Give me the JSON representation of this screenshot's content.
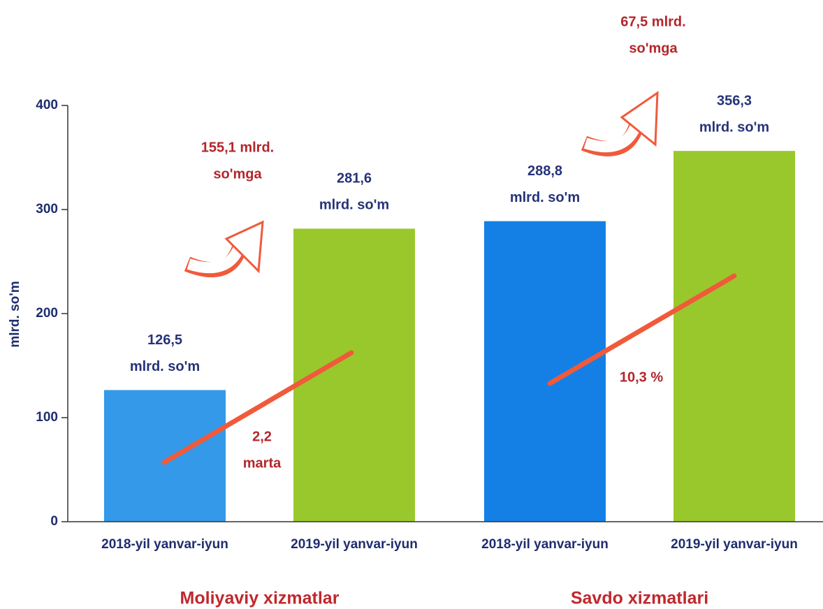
{
  "chart_data": {
    "type": "bar",
    "y_axis_label": "mlrd. so'm",
    "categories": [
      "2018-yil yanvar-iyun",
      "2019-yil yanvar-iyun",
      "2018-yil yanvar-iyun",
      "2019-yil yanvar-iyun"
    ],
    "groups": [
      "Moliyaviy xizmatlar",
      "Savdo xizmatlari"
    ],
    "values": [
      126.5,
      281.6,
      288.8,
      356.3
    ],
    "value_labels": [
      "126,5",
      "281,6",
      "288,8",
      "356,3"
    ],
    "value_label_unit": "mlrd. so'm",
    "colors": [
      "#3399e8",
      "#99c82c",
      "#1480e6",
      "#99c82c"
    ],
    "ylim": [
      0,
      400
    ],
    "yticks": [
      0,
      100,
      200,
      300,
      400
    ],
    "annotations": [
      {
        "lines": [
          "155,1 mlrd.",
          "so'mga"
        ]
      },
      {
        "lines": [
          "2,2",
          "marta"
        ]
      },
      {
        "lines": [
          "67,5 mlrd.",
          "so'mga"
        ]
      },
      {
        "lines": [
          "10,3 %"
        ]
      }
    ]
  }
}
